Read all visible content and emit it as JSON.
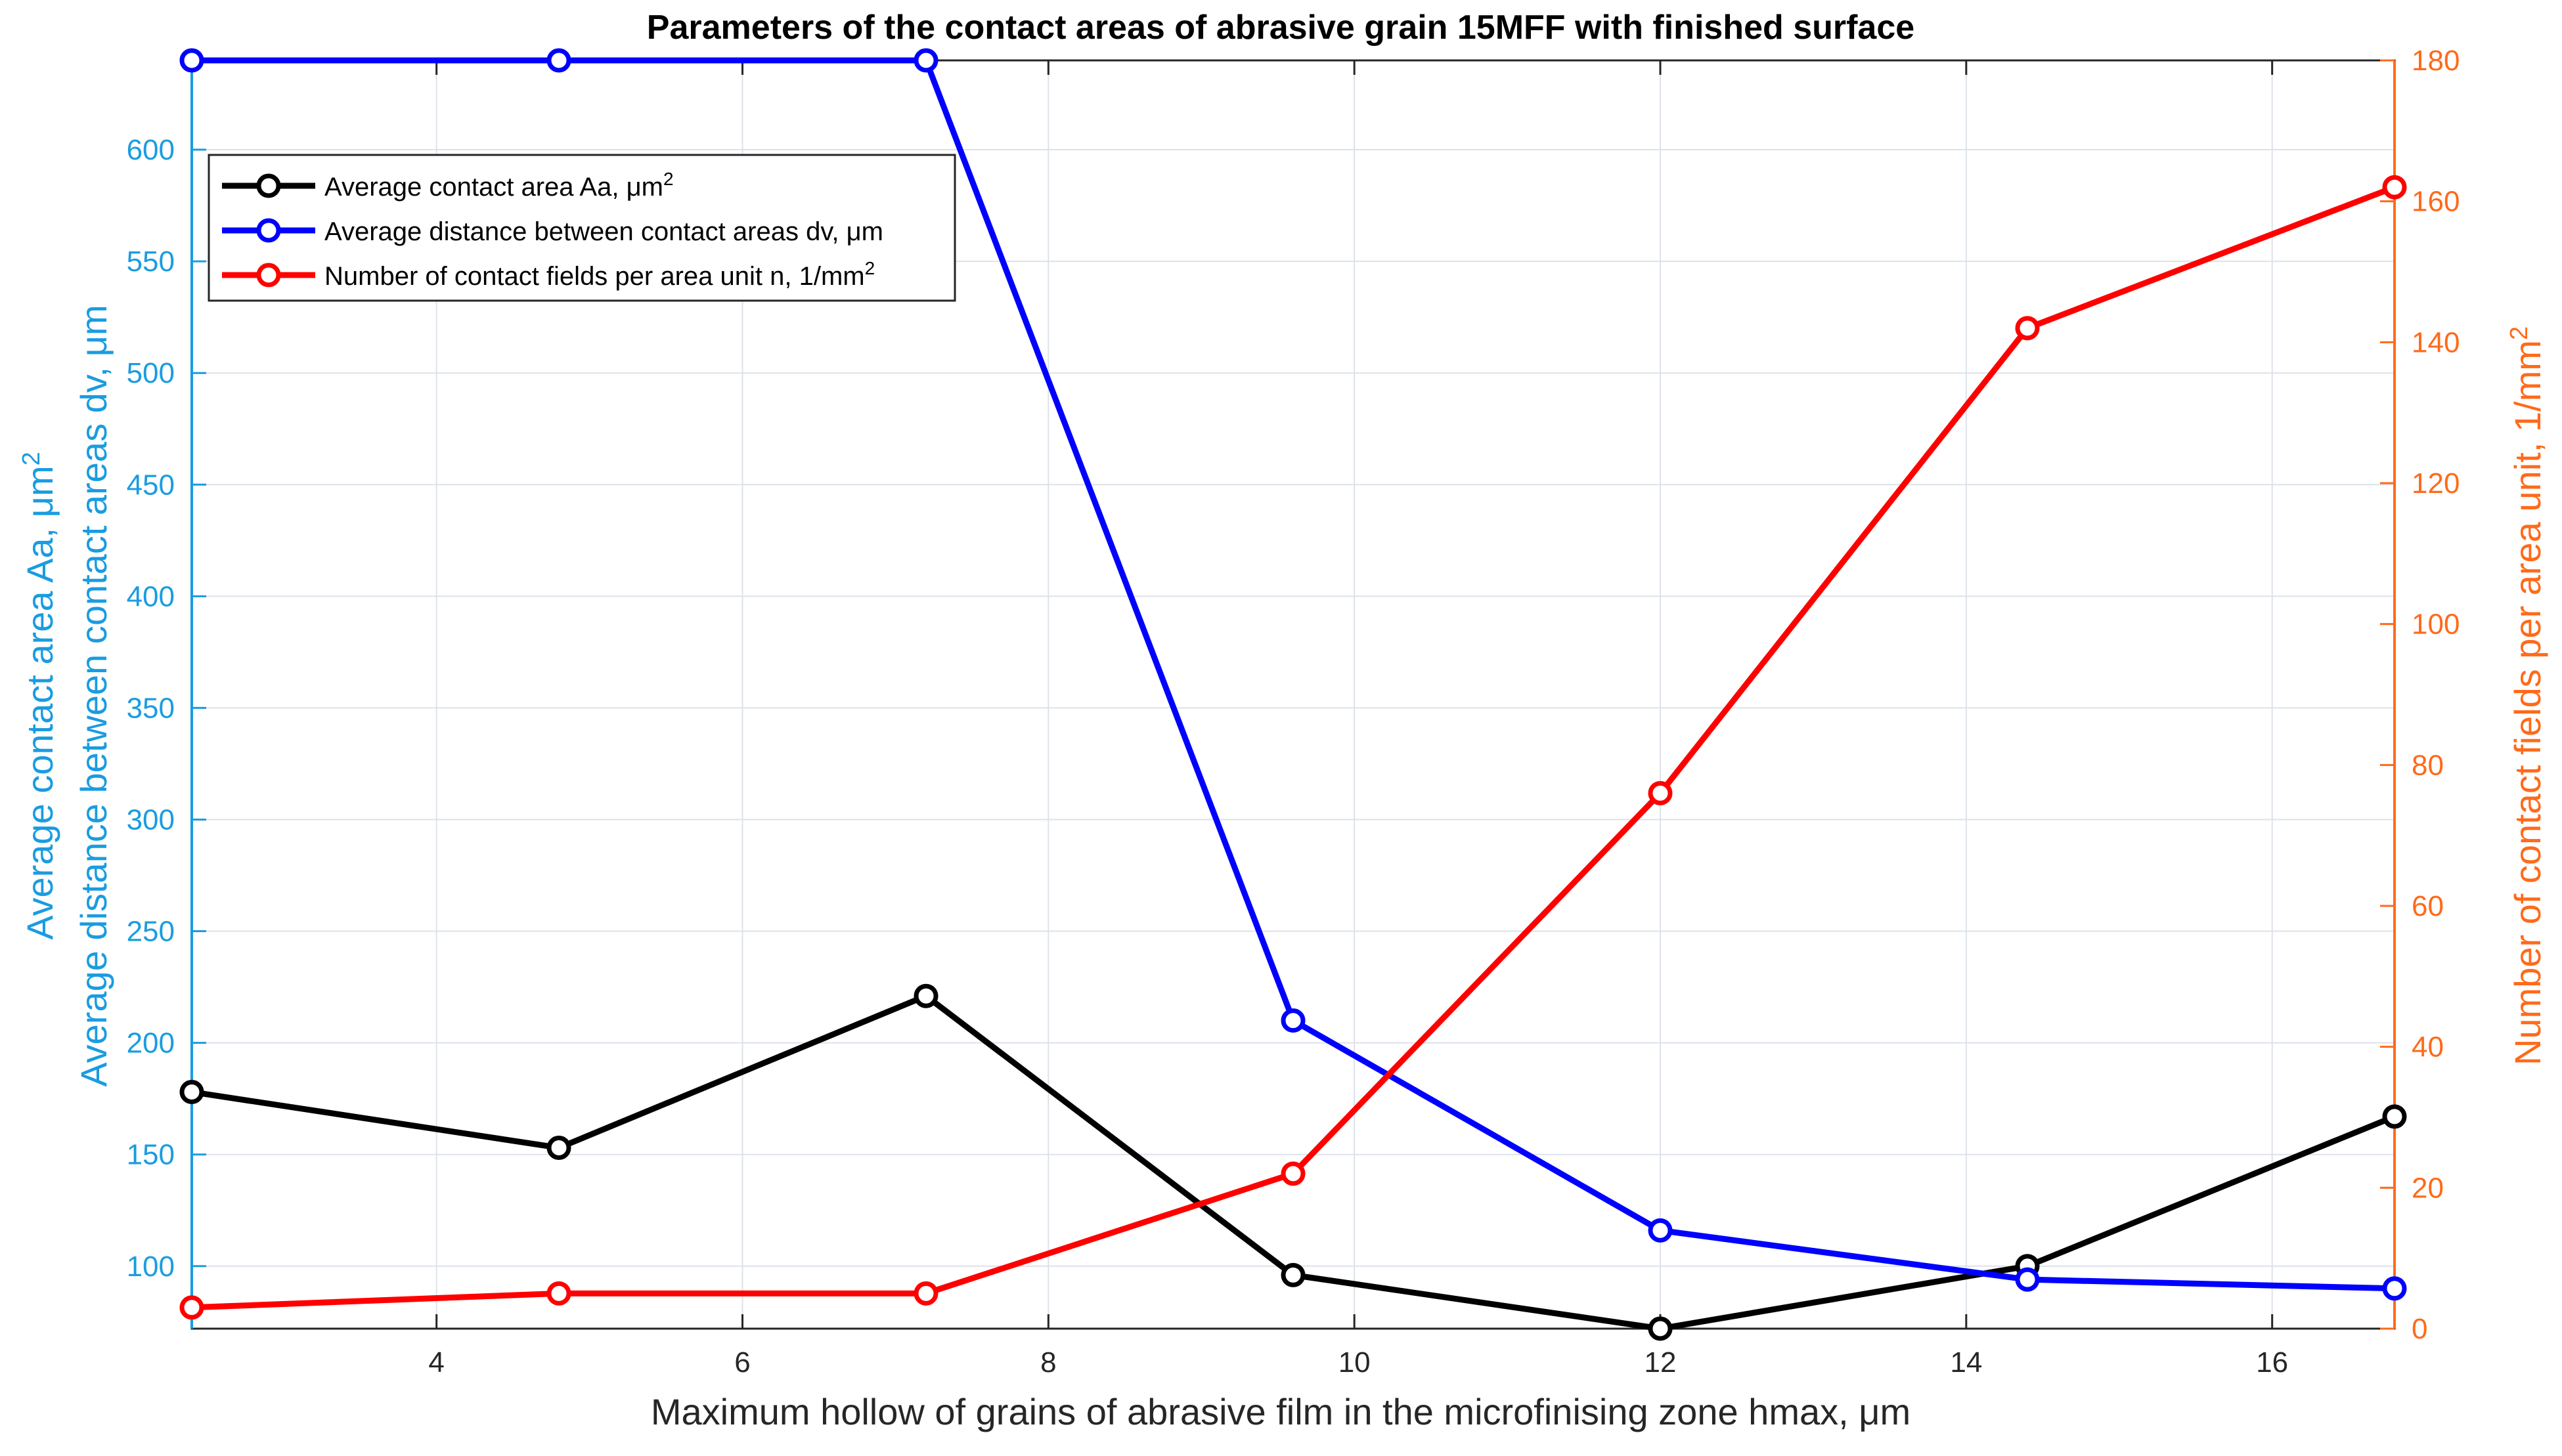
{
  "chart_data": {
    "type": "line",
    "title": "Parameters of the contact areas of abrasive grain 15MFF with finished surface",
    "xlabel": "Maximum hollow of grains of abrasive film in the  microfinising zone hmax, μm",
    "ylabel_left_line1": "Average contact area Aa, μm",
    "ylabel_left_line1_sup": "2",
    "ylabel_left_line2": "Average distance between contact areas dv, μm",
    "ylabel_right": "Number of contact fields per area unit, 1/mm",
    "ylabel_right_sup": "2",
    "xlim": [
      2.4,
      16.8
    ],
    "ylim_left": [
      72,
      640
    ],
    "ylim_right": [
      0,
      180
    ],
    "x_ticks": [
      4,
      6,
      8,
      10,
      12,
      14,
      16
    ],
    "x_tick_labels": [
      "4",
      "6",
      "8",
      "10",
      "12",
      "14",
      "16"
    ],
    "y_left_ticks": [
      100,
      150,
      200,
      250,
      300,
      350,
      400,
      450,
      500,
      550,
      600
    ],
    "y_left_tick_labels": [
      "100",
      "150",
      "200",
      "250",
      "300",
      "350",
      "400",
      "450",
      "500",
      "550",
      "600"
    ],
    "y_right_ticks": [
      0,
      20,
      40,
      60,
      80,
      100,
      120,
      140,
      160,
      180
    ],
    "y_right_tick_labels": [
      "0",
      "20",
      "40",
      "60",
      "80",
      "100",
      "120",
      "140",
      "160",
      "180"
    ],
    "grid": true,
    "legend_position": "top-left",
    "x": [
      2.4,
      4.8,
      7.2,
      9.6,
      12.0,
      14.4,
      16.8
    ],
    "series": [
      {
        "name": "Average contact area Aa, μm",
        "name_sup": "2",
        "axis": "left",
        "color": "#000000",
        "values": [
          178,
          153,
          221,
          96,
          72,
          100,
          167
        ]
      },
      {
        "name": "Average distance between contact areas dv, μm",
        "name_sup": "",
        "axis": "left",
        "color": "#0000ff",
        "values": [
          640,
          640,
          640,
          210,
          116,
          94,
          90
        ]
      },
      {
        "name": "Number of contact fields per area unit n, 1/mm",
        "name_sup": "2",
        "axis": "right",
        "color": "#ff0000",
        "values": [
          3,
          5,
          5,
          22,
          76,
          142,
          162
        ]
      }
    ],
    "colors": {
      "left_axis": "#1a9ce0",
      "right_axis": "#ff6a1a",
      "grid": "#dde2ea",
      "axis": "#262626"
    }
  }
}
